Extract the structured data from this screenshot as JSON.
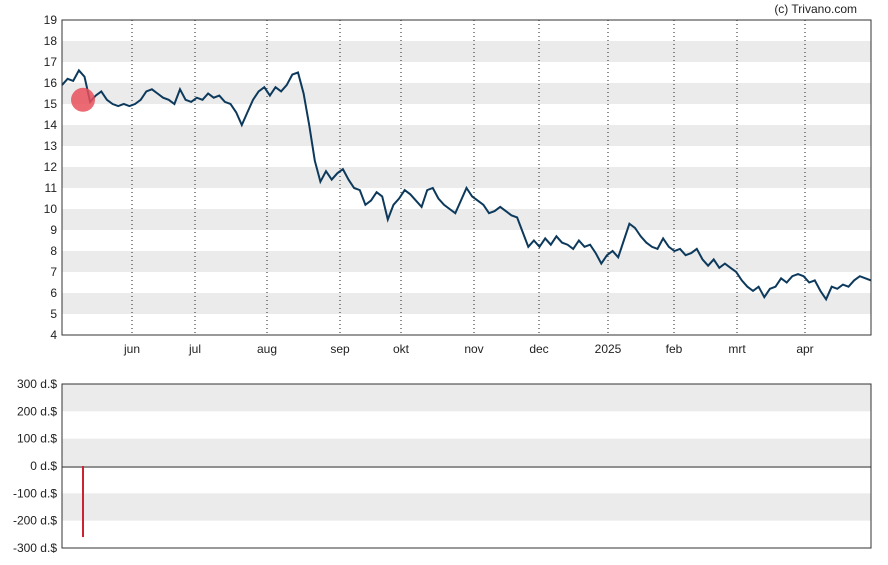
{
  "copyright": "(c) Trivano.com",
  "colors": {
    "line": "#0d3a5c",
    "marker": "#e8505b",
    "bar": "#cc2233",
    "band": "#ebebeb",
    "grid": "#222222"
  },
  "chart_data": [
    {
      "type": "line",
      "name": "price",
      "ylim": [
        4,
        19
      ],
      "yticks": [
        "4",
        "5",
        "6",
        "7",
        "8",
        "9",
        "10",
        "11",
        "12",
        "13",
        "14",
        "15",
        "16",
        "17",
        "18",
        "19"
      ],
      "month_labels": [
        "jun",
        "jul",
        "aug",
        "sep",
        "okt",
        "nov",
        "dec",
        "2025",
        "feb",
        "mrt",
        "apr"
      ],
      "grid": "vertical-dotted",
      "marker_value": 15.2,
      "values": [
        15.9,
        16.2,
        16.1,
        16.6,
        16.3,
        15.1,
        15.4,
        15.6,
        15.2,
        15.0,
        14.9,
        15.0,
        14.9,
        15.0,
        15.2,
        15.6,
        15.7,
        15.5,
        15.3,
        15.2,
        15.0,
        15.7,
        15.2,
        15.1,
        15.3,
        15.2,
        15.5,
        15.3,
        15.4,
        15.1,
        15.0,
        14.6,
        14.0,
        14.6,
        15.2,
        15.6,
        15.8,
        15.4,
        15.8,
        15.6,
        15.9,
        16.4,
        16.5,
        15.5,
        14.0,
        12.3,
        11.3,
        11.8,
        11.4,
        11.7,
        11.9,
        11.4,
        11.0,
        10.9,
        10.2,
        10.4,
        10.8,
        10.6,
        9.5,
        10.2,
        10.5,
        10.9,
        10.7,
        10.4,
        10.1,
        10.9,
        11.0,
        10.5,
        10.2,
        10.0,
        9.8,
        10.4,
        11.0,
        10.6,
        10.4,
        10.2,
        9.8,
        9.9,
        10.1,
        9.9,
        9.7,
        9.6,
        8.9,
        8.2,
        8.5,
        8.2,
        8.6,
        8.3,
        8.7,
        8.4,
        8.3,
        8.1,
        8.5,
        8.2,
        8.3,
        7.9,
        7.4,
        7.8,
        8.0,
        7.7,
        8.5,
        9.3,
        9.1,
        8.7,
        8.4,
        8.2,
        8.1,
        8.6,
        8.2,
        8.0,
        8.1,
        7.8,
        7.9,
        8.1,
        7.6,
        7.3,
        7.6,
        7.2,
        7.4,
        7.2,
        7.0,
        6.6,
        6.3,
        6.1,
        6.3,
        5.8,
        6.2,
        6.3,
        6.7,
        6.5,
        6.8,
        6.9,
        6.8,
        6.5,
        6.6,
        6.1,
        5.7,
        6.3,
        6.2,
        6.4,
        6.3,
        6.6,
        6.8,
        6.7,
        6.6
      ]
    },
    {
      "type": "bar",
      "name": "dividend",
      "ylim": [
        -300,
        300
      ],
      "yticks": [
        "300 d.$",
        "200 d.$",
        "100 d.$",
        "0 d.$",
        "-100 d.$",
        "-200 d.$",
        "-300 d.$"
      ],
      "values": [
        -260
      ]
    }
  ]
}
